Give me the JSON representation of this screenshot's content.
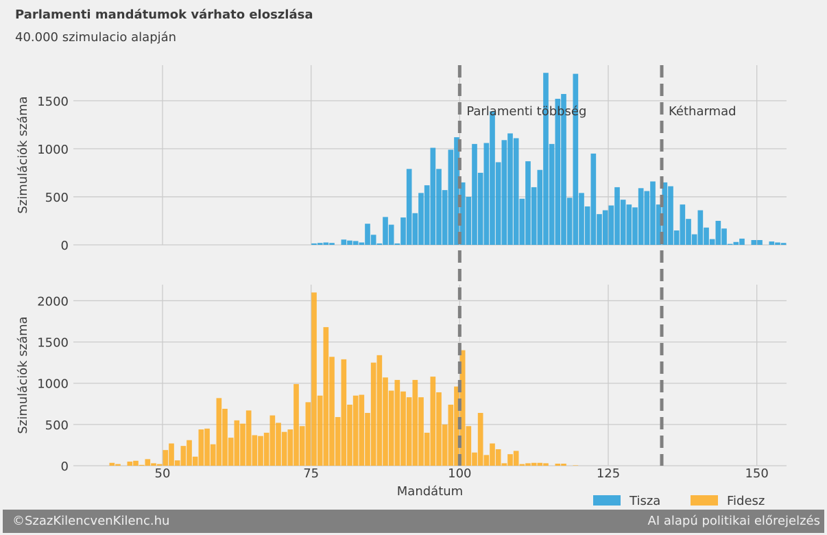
{
  "chart_data": [
    {
      "type": "histogram",
      "title": "Parlamenti mandátumok várhato eloszlása",
      "subtitle": "40.000 szimulacio alapján",
      "ylabel": "Szimulációk száma",
      "bins": [
        75,
        76,
        77,
        78,
        79,
        80,
        81,
        82,
        83,
        84,
        85,
        86,
        87,
        88,
        89,
        90,
        91,
        92,
        93,
        94,
        95,
        96,
        97,
        98,
        99,
        100,
        101,
        102,
        103,
        104,
        105,
        106,
        107,
        108,
        109,
        110,
        111,
        112,
        113,
        114,
        115,
        116,
        117,
        118,
        119,
        120,
        121,
        122,
        123,
        124,
        125,
        126,
        127,
        128,
        129,
        130,
        131,
        132,
        133,
        134,
        135,
        136,
        137,
        138,
        139,
        140,
        141,
        142,
        143,
        144,
        145,
        146,
        147,
        148,
        149,
        150,
        151,
        152,
        153,
        154,
        155
      ],
      "series": [
        {
          "name": "Tisza",
          "color": "#30a2da",
          "values": [
            15,
            20,
            25,
            20,
            0,
            55,
            45,
            40,
            25,
            220,
            105,
            15,
            290,
            210,
            15,
            285,
            790,
            330,
            540,
            620,
            1010,
            790,
            570,
            990,
            1120,
            650,
            500,
            1050,
            750,
            1060,
            1390,
            860,
            1090,
            1160,
            1110,
            480,
            870,
            600,
            780,
            1790,
            1050,
            1520,
            1570,
            490,
            1780,
            540,
            400,
            950,
            320,
            360,
            410,
            600,
            470,
            420,
            390,
            590,
            560,
            660,
            420,
            650,
            610,
            150,
            420,
            270,
            110,
            360,
            180,
            60,
            250,
            170,
            10,
            30,
            65,
            0,
            50,
            50,
            0,
            35,
            25,
            20
          ]
        }
      ],
      "xlim": [
        35,
        155
      ],
      "ylim": [
        0,
        1870
      ],
      "yticks": [
        0,
        500,
        1000,
        1500
      ],
      "grid": true,
      "annotations": [
        {
          "x": 100,
          "label": "Parlamenti többség"
        },
        {
          "x": 134,
          "label": "Kétharmad"
        }
      ]
    },
    {
      "type": "histogram",
      "ylabel": "Szimulációk száma",
      "xlabel": "Mandátum",
      "bins": [
        41,
        42,
        43,
        44,
        45,
        46,
        47,
        48,
        49,
        50,
        51,
        52,
        53,
        54,
        55,
        56,
        57,
        58,
        59,
        60,
        61,
        62,
        63,
        64,
        65,
        66,
        67,
        68,
        69,
        70,
        71,
        72,
        73,
        74,
        75,
        76,
        77,
        78,
        79,
        80,
        81,
        82,
        83,
        84,
        85,
        86,
        87,
        88,
        89,
        90,
        91,
        92,
        93,
        94,
        95,
        96,
        97,
        98,
        99,
        100,
        101,
        102,
        103,
        104,
        105,
        106,
        107,
        108,
        109,
        110,
        111,
        112,
        113,
        114,
        115,
        116,
        117,
        118,
        119,
        120
      ],
      "series": [
        {
          "name": "Fidesz",
          "color": "#fcaf2c",
          "values": [
            35,
            20,
            0,
            50,
            60,
            10,
            80,
            30,
            20,
            190,
            270,
            65,
            240,
            310,
            110,
            440,
            450,
            260,
            820,
            690,
            340,
            550,
            510,
            670,
            370,
            360,
            400,
            610,
            520,
            410,
            440,
            990,
            480,
            770,
            2100,
            850,
            1680,
            1320,
            590,
            1290,
            740,
            850,
            860,
            640,
            1250,
            1340,
            1070,
            910,
            1040,
            900,
            830,
            1040,
            830,
            400,
            1080,
            890,
            500,
            740,
            960,
            1400,
            480,
            160,
            640,
            130,
            270,
            200,
            30,
            140,
            180,
            20,
            30,
            35,
            35,
            30,
            0,
            25,
            25,
            0,
            5
          ]
        }
      ],
      "xlim": [
        35,
        155
      ],
      "ylim": [
        0,
        2195
      ],
      "xticks": [
        50,
        75,
        100,
        125,
        150
      ],
      "yticks": [
        0,
        500,
        1000,
        1500,
        2000
      ],
      "grid": true,
      "legend": "bottom right"
    }
  ],
  "footer": {
    "left": "©SzazKilencvenKilenc.hu",
    "right": "AI alapú politikai előrejelzés"
  }
}
